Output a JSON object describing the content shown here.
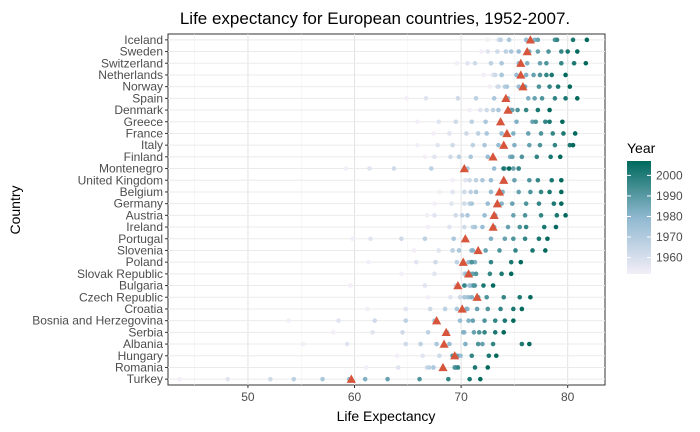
{
  "chart_data": {
    "type": "scatter",
    "title": "Life expectancy for European countries, 1952-2007.",
    "xlabel": "Life Expectancy",
    "ylabel": "Country",
    "xlim": [
      42.5,
      83.5
    ],
    "xticks": [
      50,
      60,
      70,
      80
    ],
    "grid": true,
    "legend": {
      "title": "Year",
      "placement": "right",
      "ticks": [
        1960,
        1970,
        1980,
        1990,
        2000
      ],
      "range": [
        1952,
        2007
      ],
      "color_low": "#f3eef8",
      "color_mid": "#8fb8d0",
      "color_high": "#00695c"
    },
    "mean_marker_color": "#d6553b",
    "years": [
      1952,
      1957,
      1962,
      1967,
      1972,
      1977,
      1982,
      1987,
      1992,
      1997,
      2002,
      2007
    ],
    "countries": [
      {
        "name": "Iceland",
        "values": [
          72.5,
          73.5,
          73.7,
          73.7,
          74.5,
          76.1,
          76.9,
          77.2,
          78.8,
          79.0,
          80.5,
          81.8
        ],
        "mean": 76.5
      },
      {
        "name": "Sweden",
        "values": [
          71.9,
          72.5,
          73.4,
          74.2,
          74.7,
          75.4,
          76.4,
          77.2,
          78.2,
          79.4,
          80.0,
          80.9
        ],
        "mean": 76.2
      },
      {
        "name": "Switzerland",
        "values": [
          69.6,
          70.6,
          71.3,
          72.8,
          73.8,
          75.4,
          76.2,
          77.4,
          78.0,
          79.4,
          80.6,
          81.7
        ],
        "mean": 75.6
      },
      {
        "name": "Netherlands",
        "values": [
          72.1,
          73.0,
          73.2,
          73.8,
          73.8,
          75.2,
          76.1,
          76.8,
          77.4,
          78.0,
          78.5,
          79.8
        ],
        "mean": 75.6
      },
      {
        "name": "Norway",
        "values": [
          72.7,
          73.4,
          73.5,
          74.1,
          74.3,
          75.4,
          76.0,
          75.9,
          77.3,
          78.3,
          79.1,
          80.2
        ],
        "mean": 75.8
      },
      {
        "name": "Spain",
        "values": [
          64.9,
          66.7,
          69.7,
          71.4,
          73.1,
          74.4,
          76.3,
          76.9,
          77.6,
          78.8,
          79.8,
          80.9
        ],
        "mean": 74.2
      },
      {
        "name": "Denmark",
        "values": [
          70.8,
          71.8,
          72.4,
          73.0,
          73.5,
          74.7,
          74.6,
          74.8,
          75.3,
          76.1,
          77.2,
          78.3
        ],
        "mean": 74.4
      },
      {
        "name": "Greece",
        "values": [
          65.9,
          67.9,
          69.5,
          71.0,
          72.3,
          73.7,
          75.2,
          76.7,
          77.0,
          77.9,
          78.3,
          79.5
        ],
        "mean": 73.7
      },
      {
        "name": "France",
        "values": [
          67.4,
          68.9,
          70.5,
          71.6,
          72.4,
          73.8,
          74.9,
          76.3,
          77.5,
          78.6,
          79.6,
          80.7
        ],
        "mean": 74.3
      },
      {
        "name": "Italy",
        "values": [
          65.9,
          67.8,
          69.2,
          71.1,
          72.2,
          73.5,
          75.0,
          76.4,
          77.4,
          78.8,
          80.2,
          80.5
        ],
        "mean": 74.0
      },
      {
        "name": "Finland",
        "values": [
          66.6,
          67.5,
          69.0,
          69.8,
          70.9,
          72.5,
          74.6,
          74.8,
          75.7,
          77.1,
          78.4,
          79.3
        ],
        "mean": 72.99
      },
      {
        "name": "Montenegro",
        "values": [
          59.2,
          61.4,
          63.7,
          67.2,
          70.6,
          73.1,
          74.1,
          74.9,
          75.4,
          75.4,
          73.98,
          74.5
        ],
        "mean": 70.3
      },
      {
        "name": "United Kingdom",
        "values": [
          69.2,
          70.4,
          70.8,
          71.4,
          72.0,
          72.8,
          74.0,
          75.0,
          76.4,
          77.2,
          78.5,
          79.4
        ],
        "mean": 74.0
      },
      {
        "name": "Belgium",
        "values": [
          68.0,
          69.2,
          70.3,
          70.9,
          71.4,
          72.8,
          73.9,
          75.4,
          76.5,
          77.5,
          78.3,
          79.4
        ],
        "mean": 73.6
      },
      {
        "name": "Germany",
        "values": [
          67.5,
          69.1,
          70.3,
          70.8,
          71.0,
          72.5,
          73.8,
          74.8,
          76.1,
          77.3,
          78.7,
          79.4
        ],
        "mean": 73.4
      },
      {
        "name": "Austria",
        "values": [
          66.8,
          67.5,
          69.5,
          70.1,
          70.6,
          72.2,
          73.2,
          74.9,
          76.0,
          77.5,
          78.98,
          79.8
        ],
        "mean": 73.1
      },
      {
        "name": "Ireland",
        "values": [
          66.9,
          68.9,
          70.3,
          71.1,
          71.3,
          72.0,
          73.1,
          74.4,
          75.5,
          76.1,
          77.8,
          78.9
        ],
        "mean": 73.0
      },
      {
        "name": "Portugal",
        "values": [
          59.8,
          61.5,
          64.4,
          66.6,
          69.3,
          70.4,
          72.8,
          74.1,
          74.9,
          76.0,
          77.3,
          78.1
        ],
        "mean": 70.4
      },
      {
        "name": "Slovenia",
        "values": [
          65.6,
          67.9,
          69.2,
          69.2,
          69.8,
          70.97,
          71.1,
          72.3,
          73.6,
          75.1,
          76.7,
          77.9
        ],
        "mean": 71.6
      },
      {
        "name": "Poland",
        "values": [
          61.3,
          65.8,
          67.6,
          69.6,
          70.9,
          70.7,
          71.3,
          71.0,
          71.0,
          72.8,
          74.7,
          75.6
        ],
        "mean": 70.2
      },
      {
        "name": "Slovak Republic",
        "values": [
          64.4,
          67.5,
          70.3,
          70.98,
          70.4,
          70.5,
          70.8,
          71.1,
          71.4,
          72.7,
          73.8,
          74.7
        ],
        "mean": 70.7
      },
      {
        "name": "Bulgaria",
        "values": [
          59.6,
          66.6,
          69.5,
          70.4,
          70.9,
          70.8,
          71.1,
          71.3,
          71.2,
          70.3,
          72.1,
          73.0
        ],
        "mean": 69.7
      },
      {
        "name": "Czech Republic",
        "values": [
          66.9,
          69.0,
          69.9,
          70.4,
          70.3,
          70.7,
          71.0,
          71.6,
          72.4,
          74.0,
          75.5,
          76.5
        ],
        "mean": 71.5
      },
      {
        "name": "Croatia",
        "values": [
          61.2,
          64.8,
          67.1,
          68.5,
          69.6,
          70.6,
          70.5,
          71.5,
          72.5,
          73.7,
          74.9,
          75.7
        ],
        "mean": 70.1
      },
      {
        "name": "Bosnia and Herzegovina",
        "values": [
          53.8,
          58.5,
          61.9,
          64.8,
          67.5,
          69.9,
          70.7,
          71.1,
          72.2,
          73.2,
          74.1,
          74.9
        ],
        "mean": 67.7
      },
      {
        "name": "Serbia",
        "values": [
          58.0,
          61.7,
          64.5,
          66.9,
          68.7,
          70.3,
          70.2,
          71.2,
          71.7,
          72.2,
          73.2,
          74.0
        ],
        "mean": 68.6
      },
      {
        "name": "Albania",
        "values": [
          55.2,
          59.3,
          64.8,
          66.2,
          67.7,
          68.9,
          70.4,
          72.0,
          71.6,
          73.0,
          75.7,
          76.4
        ],
        "mean": 68.4
      },
      {
        "name": "Hungary",
        "values": [
          64.0,
          66.4,
          67.96,
          69.5,
          69.8,
          69.95,
          69.4,
          69.6,
          69.2,
          71.0,
          72.6,
          73.3
        ],
        "mean": 69.4
      },
      {
        "name": "Romania",
        "values": [
          61.1,
          64.1,
          66.8,
          67.0,
          67.4,
          69.5,
          69.7,
          69.5,
          69.4,
          69.7,
          71.3,
          72.5
        ],
        "mean": 68.3
      },
      {
        "name": "Turkey",
        "values": [
          43.6,
          48.1,
          52.1,
          54.3,
          57.0,
          59.5,
          61.0,
          63.1,
          66.1,
          68.8,
          70.8,
          71.8
        ],
        "mean": 59.7
      }
    ]
  }
}
